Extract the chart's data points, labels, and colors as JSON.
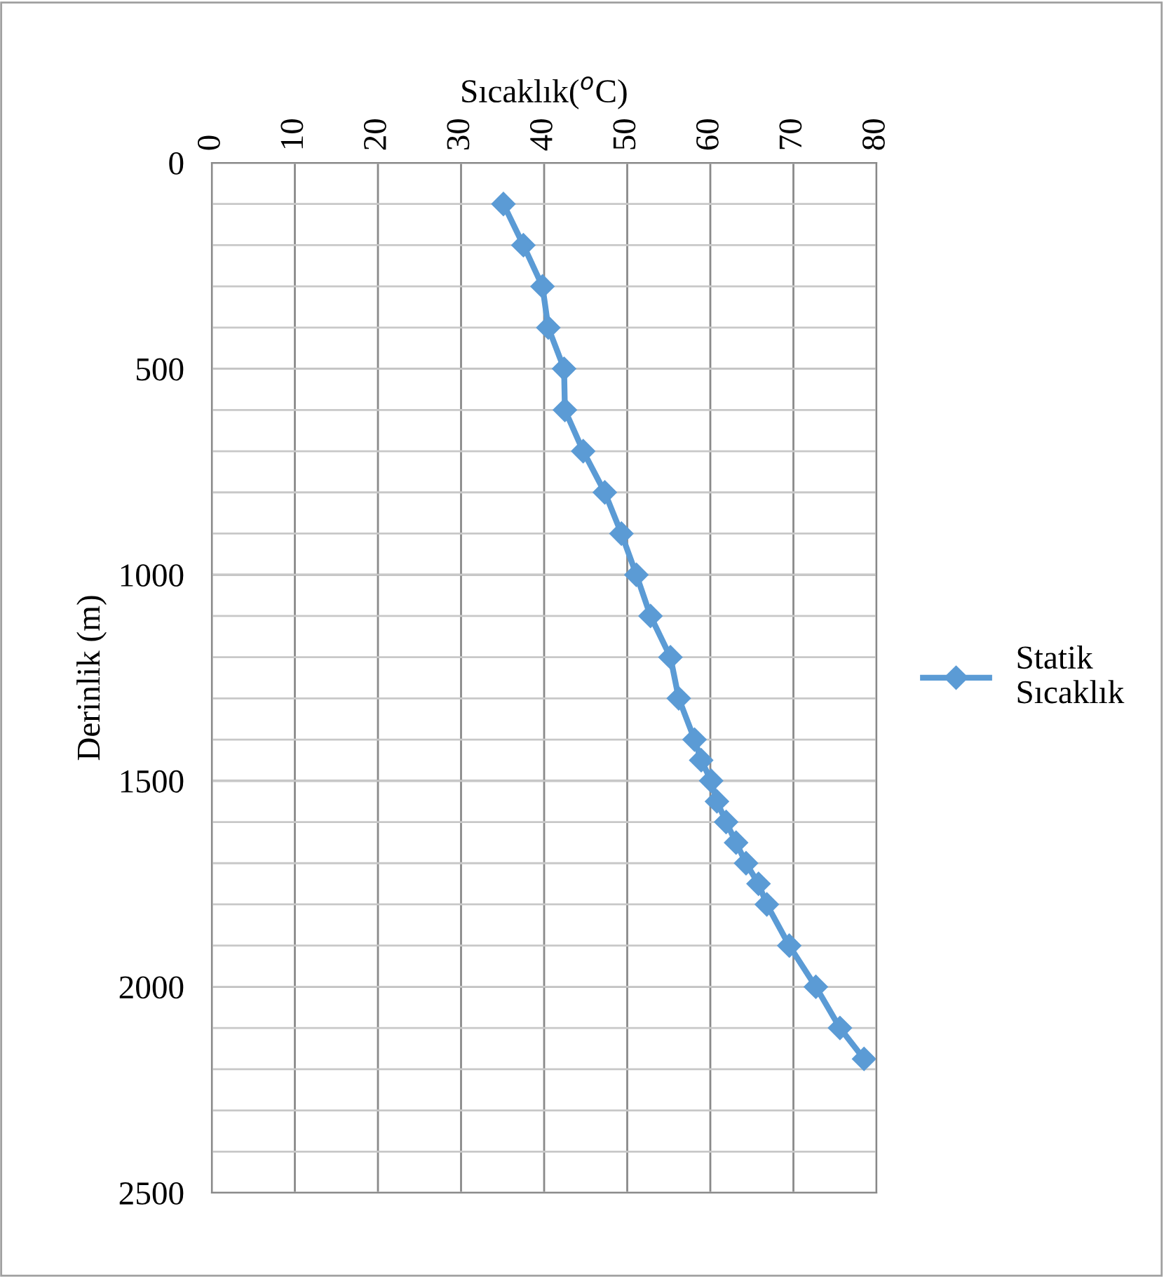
{
  "chart_data": {
    "type": "line",
    "xlabel": "Sıcaklık($^{o}$C)",
    "ylabel": "Derinlik (m)",
    "xlim": [
      0,
      80
    ],
    "xticks": [
      0,
      10,
      20,
      30,
      40,
      50,
      60,
      70,
      80
    ],
    "ylim": [
      2500,
      0
    ],
    "yticks": [
      0,
      {
        "value": 100,
        "label": null
      },
      {
        "value": 200,
        "label": null
      },
      {
        "value": 300,
        "label": null
      },
      {
        "value": 400,
        "label": null
      },
      500,
      {
        "value": 600,
        "label": null
      },
      {
        "value": 700,
        "label": null
      },
      {
        "value": 800,
        "label": null
      },
      {
        "value": 900,
        "label": null
      },
      1000,
      {
        "value": 1100,
        "label": null
      },
      {
        "value": 1200,
        "label": null
      },
      {
        "value": 1300,
        "label": null
      },
      {
        "value": 1400,
        "label": null
      },
      1500,
      {
        "value": 1600,
        "label": null
      },
      {
        "value": 1700,
        "label": null
      },
      {
        "value": 1800,
        "label": null
      },
      {
        "value": 1900,
        "label": null
      },
      2000,
      {
        "value": 2100,
        "label": null
      },
      {
        "value": 2200,
        "label": null
      },
      {
        "value": 2300,
        "label": null
      },
      {
        "value": 2400,
        "label": null
      },
      2500
    ],
    "grid": true,
    "legend": "right",
    "marker": "diamond",
    "line_style": "solid",
    "series": [
      {
        "name": "Statik\nSıcaklık",
        "color": "#5b9bd5",
        "x": [
          35.1,
          37.5,
          39.8,
          40.5,
          42.4,
          42.5,
          44.7,
          47.3,
          49.3,
          51.1,
          52.8,
          55.2,
          56.2,
          58.1,
          58.9,
          60.1,
          60.8,
          61.9,
          63.1,
          64.3,
          65.8,
          66.8,
          69.5,
          72.7,
          75.6,
          78.5
        ],
        "values": [
          100,
          200,
          300,
          400,
          500,
          600,
          700,
          800,
          900,
          1000,
          1100,
          1200,
          1300,
          1400,
          1450,
          1500,
          1550,
          1600,
          1650,
          1700,
          1750,
          1800,
          1900,
          2000,
          2100,
          2175
        ]
      }
    ]
  }
}
